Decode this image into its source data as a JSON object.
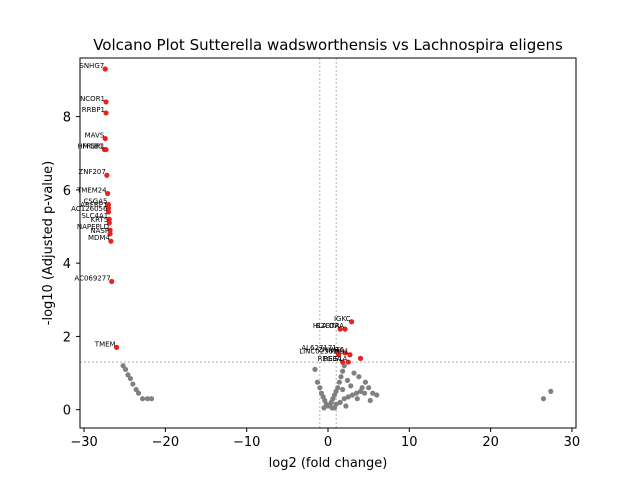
{
  "chart_data": {
    "type": "scatter",
    "title": "Volcano Plot Sutterella wadsworthensis vs Lachnospira eligens",
    "xlabel": "log2 (fold change)",
    "ylabel": "-log10 (Adjusted p-value)",
    "xlim": [
      -30.5,
      30.5
    ],
    "ylim": [
      -0.5,
      9.6
    ],
    "xticks": [
      -30,
      -20,
      -10,
      0,
      10,
      20,
      30
    ],
    "xtick_labels": [
      "−30",
      "−20",
      "−10",
      "0",
      "10",
      "20",
      "30"
    ],
    "yticks": [
      0,
      2,
      4,
      6,
      8
    ],
    "ytick_labels": [
      "0",
      "2",
      "4",
      "6",
      "8"
    ],
    "thresholds": {
      "fold_change_lines": [
        -1,
        1
      ],
      "pvalue_line": 1.3
    },
    "grid": false,
    "legend": "none",
    "colors": {
      "significant": "#e8221c",
      "not_significant": "#808080"
    },
    "significant_left": [
      {
        "label": "SNHG7",
        "x": -27.4,
        "y": 9.3
      },
      {
        "label": "NCOR1",
        "x": -27.3,
        "y": 8.4
      },
      {
        "label": "RRBP1",
        "x": -27.3,
        "y": 8.1
      },
      {
        "label": "MAVS",
        "x": -27.4,
        "y": 7.4
      },
      {
        "label": "HMGB1",
        "x": -27.5,
        "y": 7.1
      },
      {
        "label": "FFGR1",
        "x": -27.3,
        "y": 7.1
      },
      {
        "label": "ZNF207",
        "x": -27.2,
        "y": 6.4
      },
      {
        "label": "TMEM24",
        "x": -27.1,
        "y": 5.9
      },
      {
        "label": "CSGA5",
        "x": -27.0,
        "y": 5.6
      },
      {
        "label": "ARFRP1",
        "x": -27.0,
        "y": 5.5
      },
      {
        "label": "AC126056",
        "x": -27.0,
        "y": 5.4
      },
      {
        "label": "SLC4A1",
        "x": -26.9,
        "y": 5.2
      },
      {
        "label": "KRT5",
        "x": -26.9,
        "y": 5.1
      },
      {
        "label": "NAPEPLD",
        "x": -26.8,
        "y": 4.9
      },
      {
        "label": "NASP",
        "x": -26.8,
        "y": 4.8
      },
      {
        "label": "MDM4",
        "x": -26.7,
        "y": 4.6
      },
      {
        "label": "AC069277",
        "x": -26.6,
        "y": 3.5
      },
      {
        "label": "TMEM",
        "x": -26.0,
        "y": 1.7
      }
    ],
    "significant_right": [
      {
        "label": "IGKC",
        "x": 2.9,
        "y": 2.4
      },
      {
        "label": "HLA-DRA",
        "x": 2.1,
        "y": 2.2
      },
      {
        "label": "BZDTA",
        "x": 1.5,
        "y": 2.2
      },
      {
        "label": "AL627171",
        "x": 1.2,
        "y": 1.6
      },
      {
        "label": "LINC02362",
        "x": 1.3,
        "y": 1.5
      },
      {
        "label": "ZNHIT6",
        "x": 2.1,
        "y": 1.55
      },
      {
        "label": "PHB1",
        "x": 2.7,
        "y": 1.5
      },
      {
        "label": "REG3A",
        "x": 1.8,
        "y": 1.3
      },
      {
        "label": "REG1A",
        "x": 2.5,
        "y": 1.3
      },
      {
        "label": "",
        "x": 4.0,
        "y": 1.4
      }
    ],
    "not_significant": [
      {
        "x": -25.2,
        "y": 1.2
      },
      {
        "x": -24.9,
        "y": 1.1
      },
      {
        "x": -24.6,
        "y": 0.95
      },
      {
        "x": -24.3,
        "y": 0.85
      },
      {
        "x": -24.0,
        "y": 0.7
      },
      {
        "x": -23.6,
        "y": 0.55
      },
      {
        "x": -23.3,
        "y": 0.45
      },
      {
        "x": -22.8,
        "y": 0.3
      },
      {
        "x": -22.2,
        "y": 0.3
      },
      {
        "x": -21.7,
        "y": 0.3
      },
      {
        "x": -1.6,
        "y": 1.1
      },
      {
        "x": -1.3,
        "y": 0.75
      },
      {
        "x": -1.0,
        "y": 0.6
      },
      {
        "x": -0.8,
        "y": 0.45
      },
      {
        "x": -0.6,
        "y": 0.35
      },
      {
        "x": -0.4,
        "y": 0.25
      },
      {
        "x": -0.2,
        "y": 0.15
      },
      {
        "x": 0.0,
        "y": 0.1
      },
      {
        "x": 0.2,
        "y": 0.12
      },
      {
        "x": 0.4,
        "y": 0.2
      },
      {
        "x": 0.6,
        "y": 0.3
      },
      {
        "x": 0.8,
        "y": 0.4
      },
      {
        "x": 1.0,
        "y": 0.5
      },
      {
        "x": 1.2,
        "y": 0.6
      },
      {
        "x": 1.4,
        "y": 0.75
      },
      {
        "x": 1.6,
        "y": 0.9
      },
      {
        "x": 1.8,
        "y": 1.05
      },
      {
        "x": 2.0,
        "y": 1.2
      },
      {
        "x": 0.5,
        "y": 0.05
      },
      {
        "x": 1.0,
        "y": 0.15
      },
      {
        "x": 1.5,
        "y": 0.2
      },
      {
        "x": 2.0,
        "y": 0.3
      },
      {
        "x": 2.5,
        "y": 0.35
      },
      {
        "x": 3.0,
        "y": 0.4
      },
      {
        "x": 3.5,
        "y": 0.45
      },
      {
        "x": 4.0,
        "y": 0.5
      },
      {
        "x": 4.5,
        "y": 0.45
      },
      {
        "x": 5.0,
        "y": 0.6
      },
      {
        "x": 5.5,
        "y": 0.45
      },
      {
        "x": 6.0,
        "y": 0.4
      },
      {
        "x": 2.4,
        "y": 0.8
      },
      {
        "x": 3.2,
        "y": 1.0
      },
      {
        "x": 3.8,
        "y": 0.9
      },
      {
        "x": 4.6,
        "y": 0.75
      },
      {
        "x": 5.2,
        "y": 0.25
      },
      {
        "x": 1.8,
        "y": 0.55
      },
      {
        "x": 2.8,
        "y": 0.65
      },
      {
        "x": 3.6,
        "y": 0.3
      },
      {
        "x": 4.2,
        "y": 0.6
      },
      {
        "x": 0.8,
        "y": 0.05
      },
      {
        "x": -0.5,
        "y": 0.05
      },
      {
        "x": 2.2,
        "y": 0.1
      },
      {
        "x": 26.5,
        "y": 0.3
      },
      {
        "x": 27.4,
        "y": 0.5
      }
    ]
  }
}
